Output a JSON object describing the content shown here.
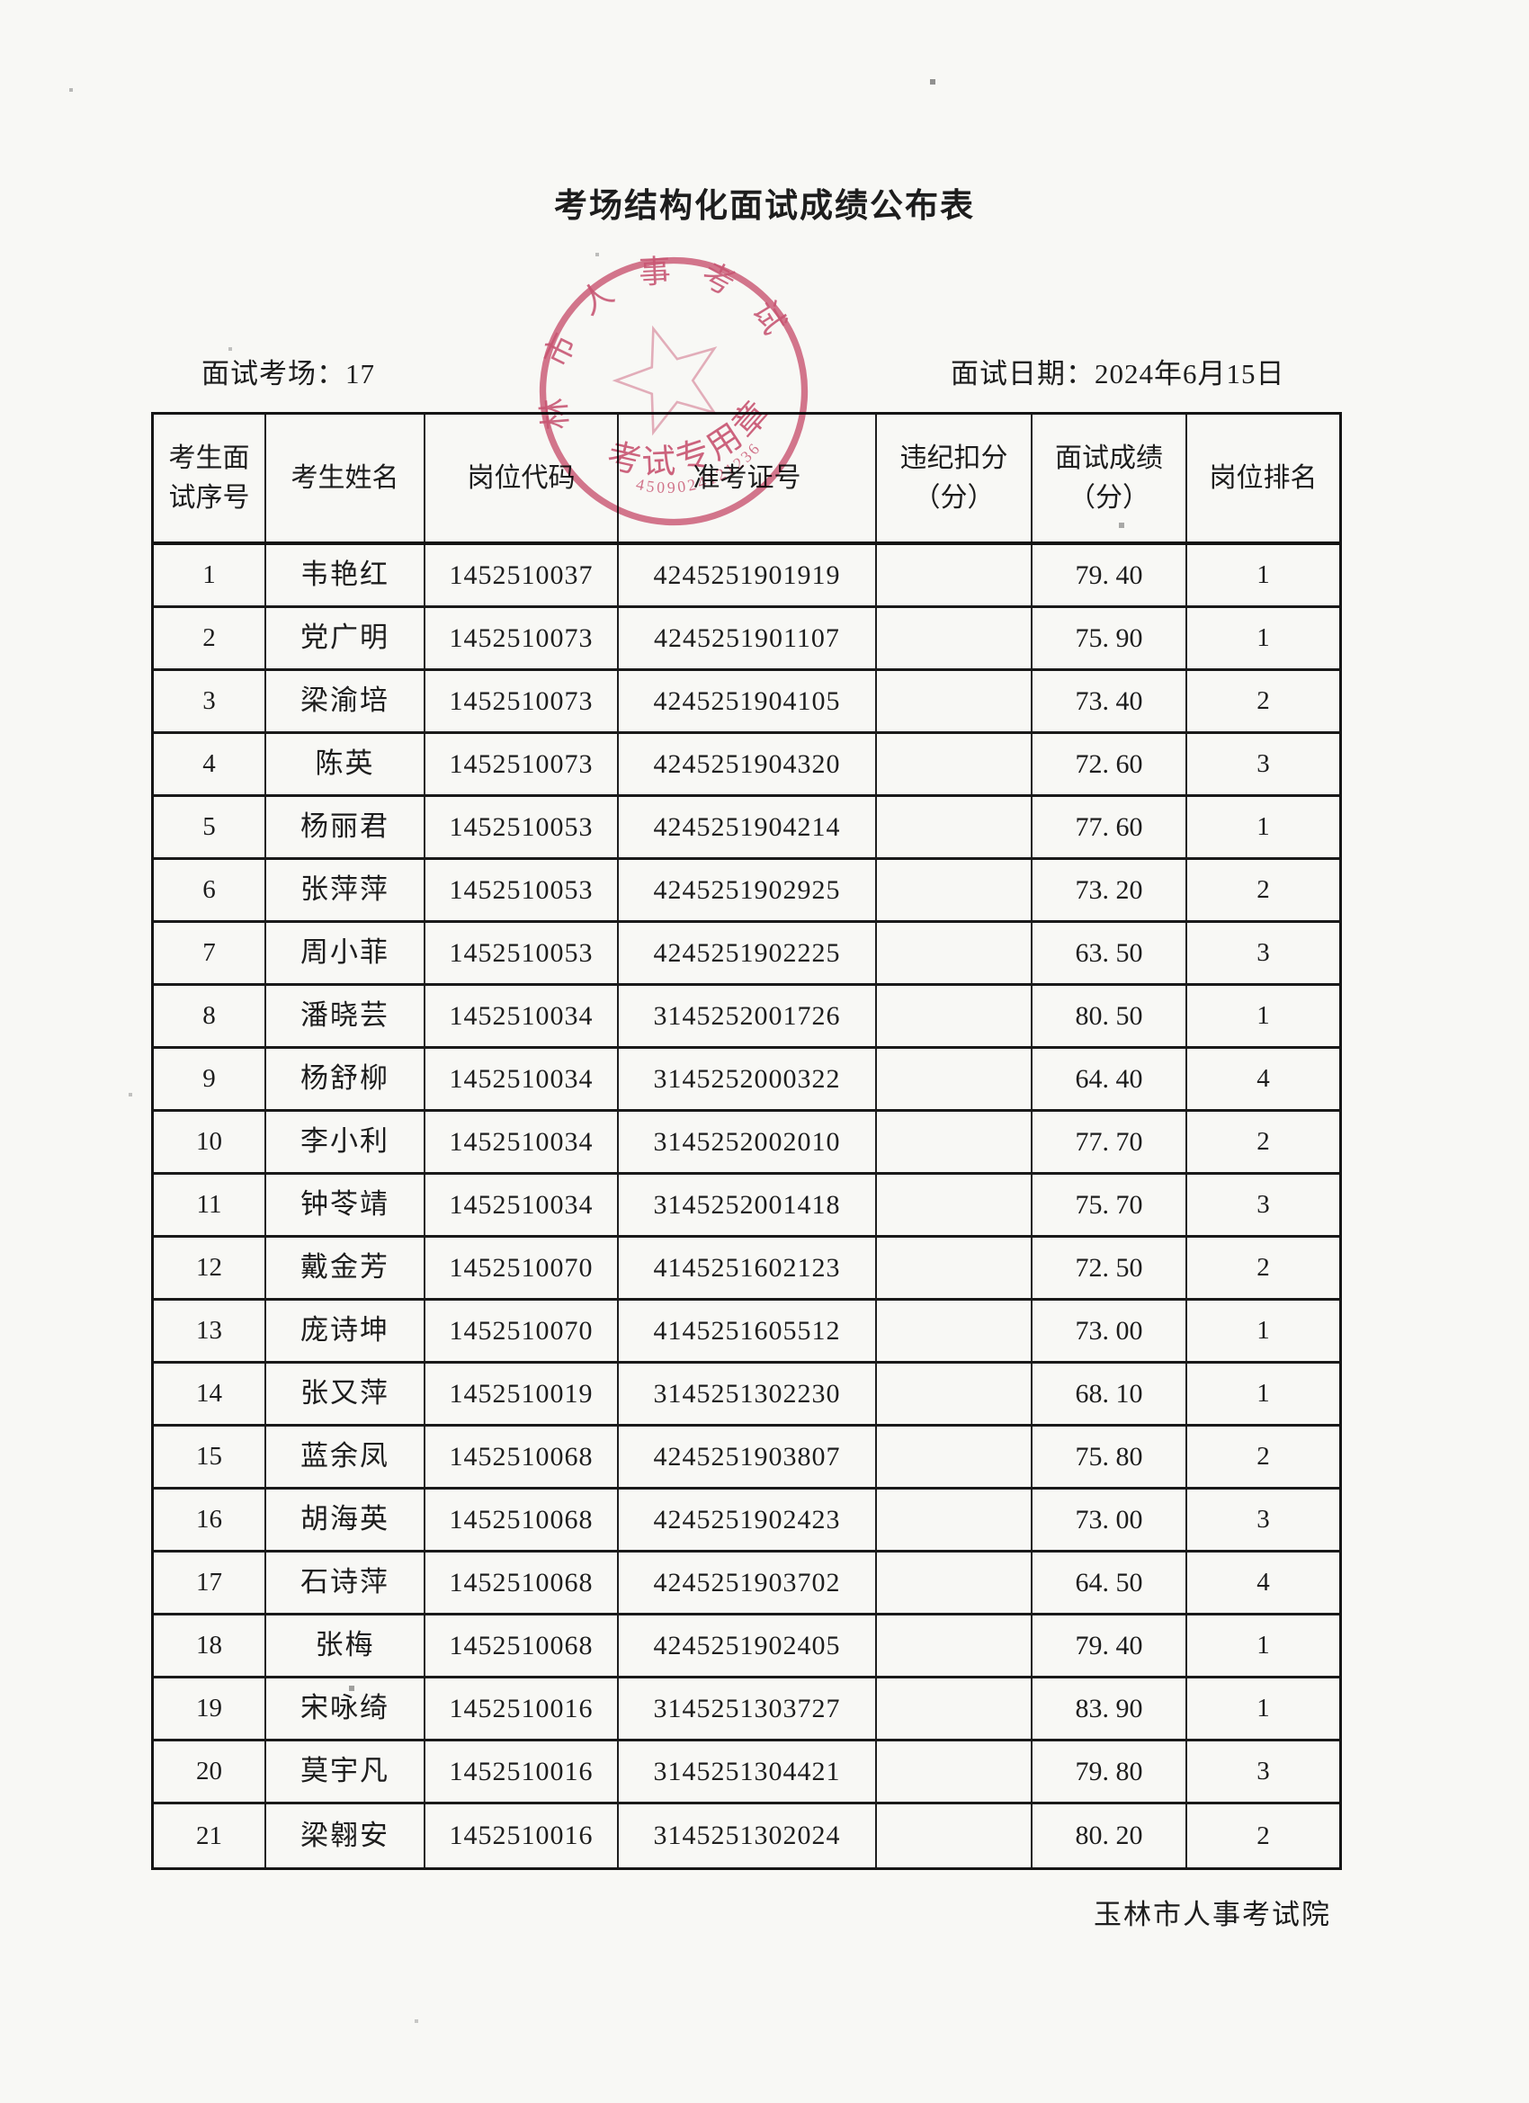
{
  "page": {
    "title": "考场结构化面试成绩公布表",
    "meta_left": "面试考场：17",
    "meta_right": "面试日期：2024年6月15日",
    "footer": "玉林市人事考试院"
  },
  "colors": {
    "ink": "#1d1d1d",
    "seal_red": "#c9486a",
    "paper": "#f8f8f5"
  },
  "stamp": {
    "ring_text": "玉林市人事考试院",
    "center_text": "考试专用章",
    "code": "4509024121236"
  },
  "table": {
    "headers": [
      "考生面\n试序号",
      "考生姓名",
      "岗位代码",
      "准考证号",
      "违纪扣分\n（分）",
      "面试成绩\n（分）",
      "岗位排名"
    ],
    "rows": [
      [
        "1",
        "韦艳红",
        "1452510037",
        "4245251901919",
        "",
        "79. 40",
        "1"
      ],
      [
        "2",
        "党广明",
        "1452510073",
        "4245251901107",
        "",
        "75. 90",
        "1"
      ],
      [
        "3",
        "梁渝培",
        "1452510073",
        "4245251904105",
        "",
        "73. 40",
        "2"
      ],
      [
        "4",
        "陈英",
        "1452510073",
        "4245251904320",
        "",
        "72. 60",
        "3"
      ],
      [
        "5",
        "杨丽君",
        "1452510053",
        "4245251904214",
        "",
        "77. 60",
        "1"
      ],
      [
        "6",
        "张萍萍",
        "1452510053",
        "4245251902925",
        "",
        "73. 20",
        "2"
      ],
      [
        "7",
        "周小菲",
        "1452510053",
        "4245251902225",
        "",
        "63. 50",
        "3"
      ],
      [
        "8",
        "潘晓芸",
        "1452510034",
        "3145252001726",
        "",
        "80. 50",
        "1"
      ],
      [
        "9",
        "杨舒柳",
        "1452510034",
        "3145252000322",
        "",
        "64. 40",
        "4"
      ],
      [
        "10",
        "李小利",
        "1452510034",
        "3145252002010",
        "",
        "77. 70",
        "2"
      ],
      [
        "11",
        "钟苓靖",
        "1452510034",
        "3145252001418",
        "",
        "75. 70",
        "3"
      ],
      [
        "12",
        "戴金芳",
        "1452510070",
        "4145251602123",
        "",
        "72. 50",
        "2"
      ],
      [
        "13",
        "庞诗坤",
        "1452510070",
        "4145251605512",
        "",
        "73. 00",
        "1"
      ],
      [
        "14",
        "张又萍",
        "1452510019",
        "3145251302230",
        "",
        "68. 10",
        "1"
      ],
      [
        "15",
        "蓝余凤",
        "1452510068",
        "4245251903807",
        "",
        "75. 80",
        "2"
      ],
      [
        "16",
        "胡海英",
        "1452510068",
        "4245251902423",
        "",
        "73. 00",
        "3"
      ],
      [
        "17",
        "石诗萍",
        "1452510068",
        "4245251903702",
        "",
        "64. 50",
        "4"
      ],
      [
        "18",
        "张梅",
        "1452510068",
        "4245251902405",
        "",
        "79. 40",
        "1"
      ],
      [
        "19",
        "宋咏绮",
        "1452510016",
        "3145251303727",
        "",
        "83. 90",
        "1"
      ],
      [
        "20",
        "莫宇凡",
        "1452510016",
        "3145251304421",
        "",
        "79. 80",
        "3"
      ],
      [
        "21",
        "梁翱安",
        "1452510016",
        "3145251302024",
        "",
        "80. 20",
        "2"
      ]
    ]
  }
}
